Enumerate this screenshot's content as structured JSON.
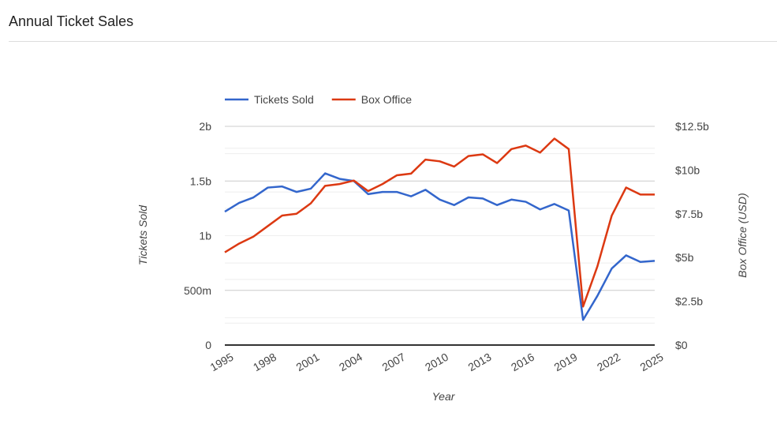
{
  "header": {
    "title": "Annual Ticket Sales"
  },
  "chart_data": {
    "type": "line",
    "x": [
      1995,
      1996,
      1997,
      1998,
      1999,
      2000,
      2001,
      2002,
      2003,
      2004,
      2005,
      2006,
      2007,
      2008,
      2009,
      2010,
      2011,
      2012,
      2013,
      2014,
      2015,
      2016,
      2017,
      2018,
      2019,
      2020,
      2021,
      2022,
      2023,
      2024,
      2025
    ],
    "series": [
      {
        "name": "Tickets Sold",
        "axis": "left",
        "color": "#3366cc",
        "values": [
          1.22,
          1.3,
          1.35,
          1.44,
          1.45,
          1.4,
          1.43,
          1.57,
          1.52,
          1.5,
          1.38,
          1.4,
          1.4,
          1.36,
          1.42,
          1.33,
          1.28,
          1.35,
          1.34,
          1.28,
          1.33,
          1.31,
          1.24,
          1.29,
          1.23,
          0.23,
          0.45,
          0.7,
          0.82,
          0.76,
          0.77
        ]
      },
      {
        "name": "Box Office",
        "axis": "right",
        "color": "#dc3912",
        "values": [
          5.3,
          5.8,
          6.2,
          6.8,
          7.4,
          7.5,
          8.1,
          9.1,
          9.2,
          9.4,
          8.8,
          9.2,
          9.7,
          9.8,
          10.6,
          10.5,
          10.2,
          10.8,
          10.9,
          10.4,
          11.2,
          11.4,
          11.0,
          11.8,
          11.2,
          2.2,
          4.5,
          7.4,
          9.0,
          8.6,
          8.6
        ]
      }
    ],
    "xlabel": "Year",
    "ylabel": "Tickets Sold",
    "y2label": "Box Office (USD)",
    "ylim": [
      0,
      2
    ],
    "y2lim": [
      0,
      12.5
    ],
    "xticks": [
      "1995",
      "1998",
      "2001",
      "2004",
      "2007",
      "2010",
      "2013",
      "2016",
      "2019",
      "2022",
      "2025"
    ],
    "yticks": [
      {
        "v": 0,
        "label": "0"
      },
      {
        "v": 0.5,
        "label": "500m"
      },
      {
        "v": 1,
        "label": "1b"
      },
      {
        "v": 1.5,
        "label": "1.5b"
      },
      {
        "v": 2,
        "label": "2b"
      }
    ],
    "y2ticks": [
      {
        "v": 0,
        "label": "$0"
      },
      {
        "v": 2.5,
        "label": "$2.5b"
      },
      {
        "v": 5,
        "label": "$5b"
      },
      {
        "v": 7.5,
        "label": "$7.5b"
      },
      {
        "v": 10,
        "label": "$10b"
      },
      {
        "v": 12.5,
        "label": "$12.5b"
      }
    ],
    "legend": "top-left",
    "grid": true
  }
}
